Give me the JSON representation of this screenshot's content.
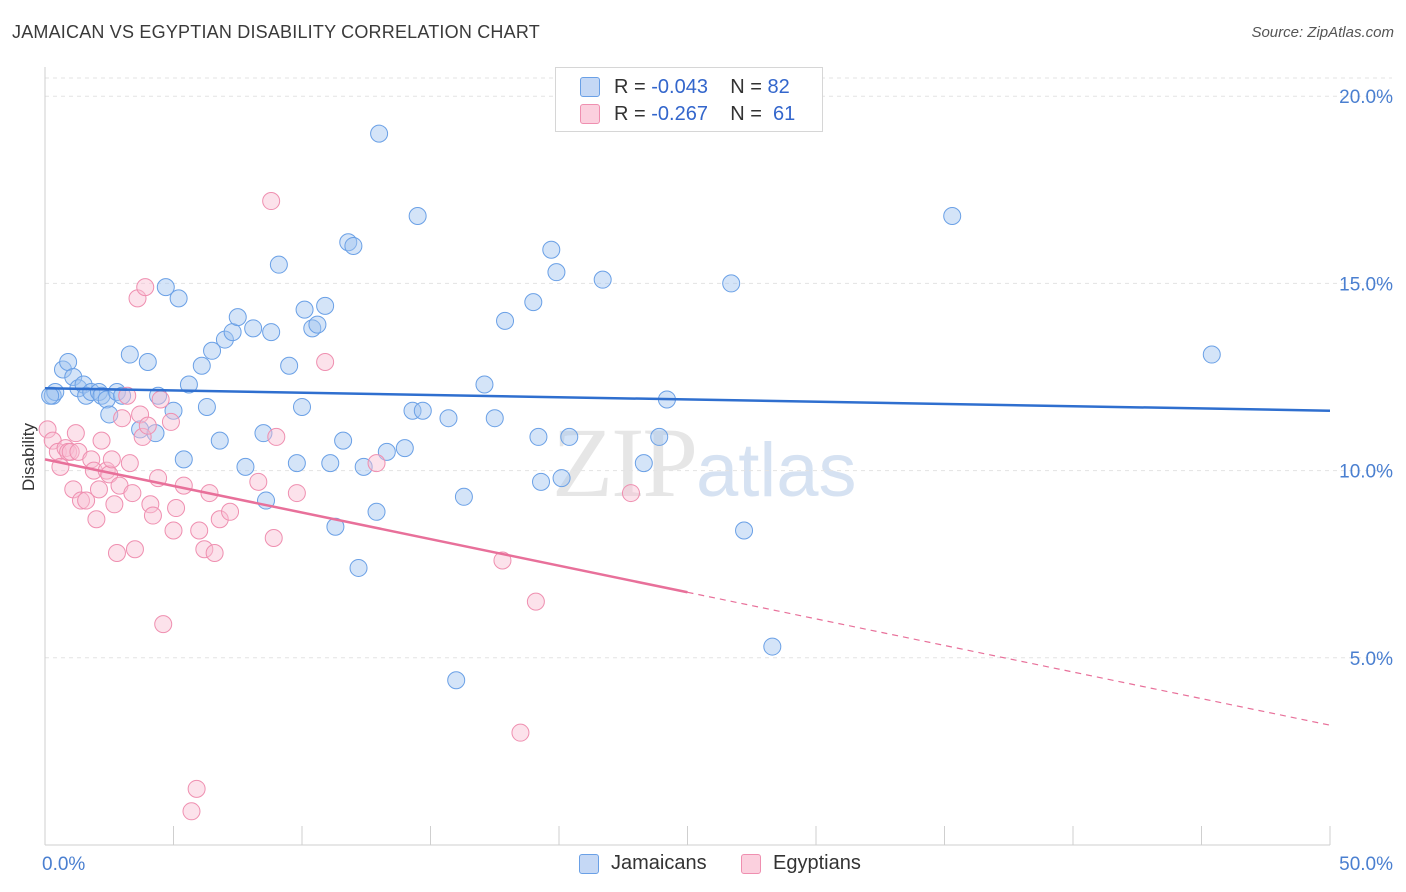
{
  "title": "JAMAICAN VS EGYPTIAN DISABILITY CORRELATION CHART",
  "source": "Source: ZipAtlas.com",
  "watermark": {
    "zip": "ZIP",
    "atlas": "atlas"
  },
  "legend_top": {
    "rows": [
      {
        "r_label": "R =",
        "r_value": "-0.043",
        "n_label": "N =",
        "n_value": "82",
        "color": "#6aa0e6"
      },
      {
        "r_label": "R =",
        "r_value": "-0.267",
        "n_label": "N =",
        "n_value": "61",
        "color": "#ef8fb0"
      }
    ]
  },
  "legend_bottom": [
    {
      "label": "Jamaicans",
      "color": "#6aa0e6"
    },
    {
      "label": "Egyptians",
      "color": "#ef8fb0"
    }
  ],
  "chart_data": {
    "type": "scatter",
    "title": "JAMAICAN VS EGYPTIAN DISABILITY CORRELATION CHART",
    "xlabel": "",
    "ylabel": "Disability",
    "xlim": [
      0,
      50
    ],
    "ylim": [
      0,
      20.7
    ],
    "x_ticks_labeled": [
      "0.0%",
      "50.0%"
    ],
    "y_ticks": [
      {
        "value": 5,
        "label": "5.0%"
      },
      {
        "value": 10,
        "label": "10.0%"
      },
      {
        "value": 15,
        "label": "15.0%"
      },
      {
        "value": 20,
        "label": "20.0%"
      }
    ],
    "grid": true,
    "legend_position": "top-center",
    "series": [
      {
        "name": "Jamaicans",
        "color": "#6aa0e6",
        "r": -0.043,
        "n": 82,
        "trend": {
          "x": [
            0,
            50
          ],
          "y": [
            12.2,
            11.6
          ],
          "dashed_from": null
        },
        "points": [
          [
            0.3,
            12.0
          ],
          [
            0.4,
            12.1
          ],
          [
            0.7,
            12.7
          ],
          [
            0.9,
            12.9
          ],
          [
            1.1,
            12.5
          ],
          [
            1.3,
            12.2
          ],
          [
            1.5,
            12.3
          ],
          [
            1.6,
            12.0
          ],
          [
            1.8,
            12.1
          ],
          [
            2.1,
            12.1
          ],
          [
            2.2,
            12.0
          ],
          [
            2.4,
            11.9
          ],
          [
            2.5,
            11.5
          ],
          [
            2.8,
            12.1
          ],
          [
            3.0,
            12.0
          ],
          [
            3.3,
            13.1
          ],
          [
            3.7,
            11.1
          ],
          [
            4.0,
            12.9
          ],
          [
            4.3,
            11.0
          ],
          [
            4.4,
            12.0
          ],
          [
            4.7,
            14.9
          ],
          [
            5.0,
            11.6
          ],
          [
            5.2,
            14.6
          ],
          [
            5.4,
            10.3
          ],
          [
            5.6,
            12.3
          ],
          [
            6.1,
            12.8
          ],
          [
            6.3,
            11.7
          ],
          [
            6.5,
            13.2
          ],
          [
            6.8,
            10.8
          ],
          [
            7.0,
            13.5
          ],
          [
            7.3,
            13.7
          ],
          [
            7.5,
            14.1
          ],
          [
            7.8,
            10.1
          ],
          [
            8.1,
            13.8
          ],
          [
            8.5,
            11.0
          ],
          [
            8.6,
            9.2
          ],
          [
            8.8,
            13.7
          ],
          [
            9.1,
            15.5
          ],
          [
            9.5,
            12.8
          ],
          [
            9.8,
            10.2
          ],
          [
            10.0,
            11.7
          ],
          [
            10.1,
            14.3
          ],
          [
            10.4,
            13.8
          ],
          [
            10.6,
            13.9
          ],
          [
            10.9,
            14.4
          ],
          [
            11.1,
            10.2
          ],
          [
            11.3,
            8.5
          ],
          [
            11.6,
            10.8
          ],
          [
            11.8,
            16.1
          ],
          [
            12.0,
            16.0
          ],
          [
            12.2,
            7.4
          ],
          [
            12.4,
            10.1
          ],
          [
            12.9,
            8.9
          ],
          [
            13.0,
            19.0
          ],
          [
            13.3,
            10.5
          ],
          [
            14.0,
            10.6
          ],
          [
            14.3,
            11.6
          ],
          [
            14.5,
            16.8
          ],
          [
            14.7,
            11.6
          ],
          [
            15.7,
            11.4
          ],
          [
            16.0,
            4.4
          ],
          [
            16.3,
            9.3
          ],
          [
            17.1,
            12.3
          ],
          [
            17.5,
            11.4
          ],
          [
            17.9,
            14.0
          ],
          [
            19.0,
            14.5
          ],
          [
            19.2,
            10.9
          ],
          [
            19.3,
            9.7
          ],
          [
            19.7,
            15.9
          ],
          [
            19.9,
            15.3
          ],
          [
            20.1,
            9.8
          ],
          [
            20.4,
            10.9
          ],
          [
            21.7,
            15.1
          ],
          [
            23.3,
            10.2
          ],
          [
            23.9,
            10.9
          ],
          [
            24.2,
            11.9
          ],
          [
            26.7,
            15.0
          ],
          [
            27.2,
            8.4
          ],
          [
            28.3,
            5.3
          ],
          [
            35.3,
            16.8
          ],
          [
            45.4,
            13.1
          ],
          [
            0.2,
            12.0
          ]
        ]
      },
      {
        "name": "Egyptians",
        "color": "#ef8fb0",
        "r": -0.267,
        "n": 61,
        "trend": {
          "x": [
            0,
            50
          ],
          "y": [
            10.3,
            3.2
          ],
          "dashed_from": 25
        },
        "points": [
          [
            0.1,
            11.1
          ],
          [
            0.3,
            10.8
          ],
          [
            0.5,
            10.5
          ],
          [
            0.6,
            10.1
          ],
          [
            0.8,
            10.6
          ],
          [
            0.9,
            10.5
          ],
          [
            1.0,
            10.5
          ],
          [
            1.1,
            9.5
          ],
          [
            1.2,
            11.0
          ],
          [
            1.3,
            10.5
          ],
          [
            1.4,
            9.2
          ],
          [
            1.6,
            9.2
          ],
          [
            1.8,
            10.3
          ],
          [
            1.9,
            10.0
          ],
          [
            2.0,
            8.7
          ],
          [
            2.1,
            9.5
          ],
          [
            2.2,
            10.8
          ],
          [
            2.4,
            10.0
          ],
          [
            2.5,
            9.9
          ],
          [
            2.6,
            10.3
          ],
          [
            2.7,
            9.1
          ],
          [
            2.8,
            7.8
          ],
          [
            2.9,
            9.6
          ],
          [
            3.0,
            11.4
          ],
          [
            3.2,
            12.0
          ],
          [
            3.3,
            10.2
          ],
          [
            3.4,
            9.4
          ],
          [
            3.5,
            7.9
          ],
          [
            3.6,
            14.6
          ],
          [
            3.7,
            11.5
          ],
          [
            3.8,
            10.9
          ],
          [
            3.9,
            14.9
          ],
          [
            4.0,
            11.2
          ],
          [
            4.1,
            9.1
          ],
          [
            4.2,
            8.8
          ],
          [
            4.4,
            9.8
          ],
          [
            4.5,
            11.9
          ],
          [
            4.6,
            5.9
          ],
          [
            4.9,
            11.3
          ],
          [
            5.0,
            8.4
          ],
          [
            5.1,
            9.0
          ],
          [
            5.4,
            9.6
          ],
          [
            5.7,
            0.9
          ],
          [
            5.9,
            1.5
          ],
          [
            6.0,
            8.4
          ],
          [
            6.2,
            7.9
          ],
          [
            6.4,
            9.4
          ],
          [
            6.6,
            7.8
          ],
          [
            6.8,
            8.7
          ],
          [
            7.2,
            8.9
          ],
          [
            8.3,
            9.7
          ],
          [
            8.8,
            17.2
          ],
          [
            8.9,
            8.2
          ],
          [
            9.0,
            10.9
          ],
          [
            9.8,
            9.4
          ],
          [
            10.9,
            12.9
          ],
          [
            12.9,
            10.2
          ],
          [
            17.8,
            7.6
          ],
          [
            18.5,
            3.0
          ],
          [
            19.1,
            6.5
          ],
          [
            22.8,
            9.4
          ]
        ]
      }
    ]
  }
}
